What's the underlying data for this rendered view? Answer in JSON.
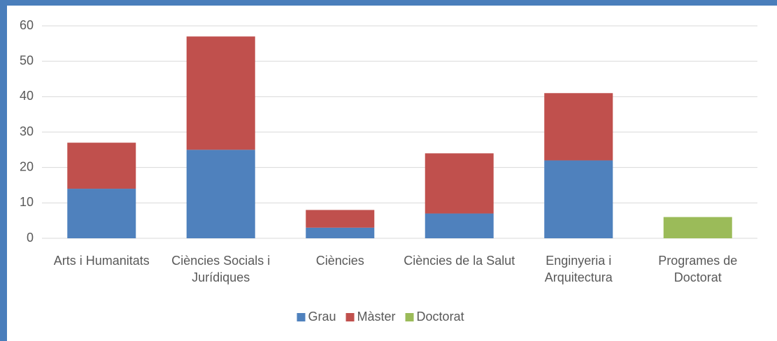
{
  "chart_data": {
    "type": "bar",
    "stacked": true,
    "categories": [
      "Arts i Humanitats",
      "Ciències Socials i Jurídiques",
      "Ciències",
      "Ciències de la Salut",
      "Enginyeria i Arquitectura",
      "Programes de Doctorat"
    ],
    "series": [
      {
        "name": "Grau",
        "color": "#4f81bd",
        "values": [
          14,
          25,
          3,
          7,
          22,
          null
        ]
      },
      {
        "name": "Màster",
        "color": "#c0504d",
        "values": [
          13,
          32,
          5,
          17,
          19,
          null
        ]
      },
      {
        "name": "Doctorat",
        "color": "#9bbb59",
        "values": [
          null,
          null,
          null,
          null,
          null,
          6
        ]
      }
    ],
    "ylim": [
      0,
      60
    ],
    "yticks": [
      0,
      10,
      20,
      30,
      40,
      50,
      60
    ],
    "grid": true,
    "legend": "bottom"
  }
}
